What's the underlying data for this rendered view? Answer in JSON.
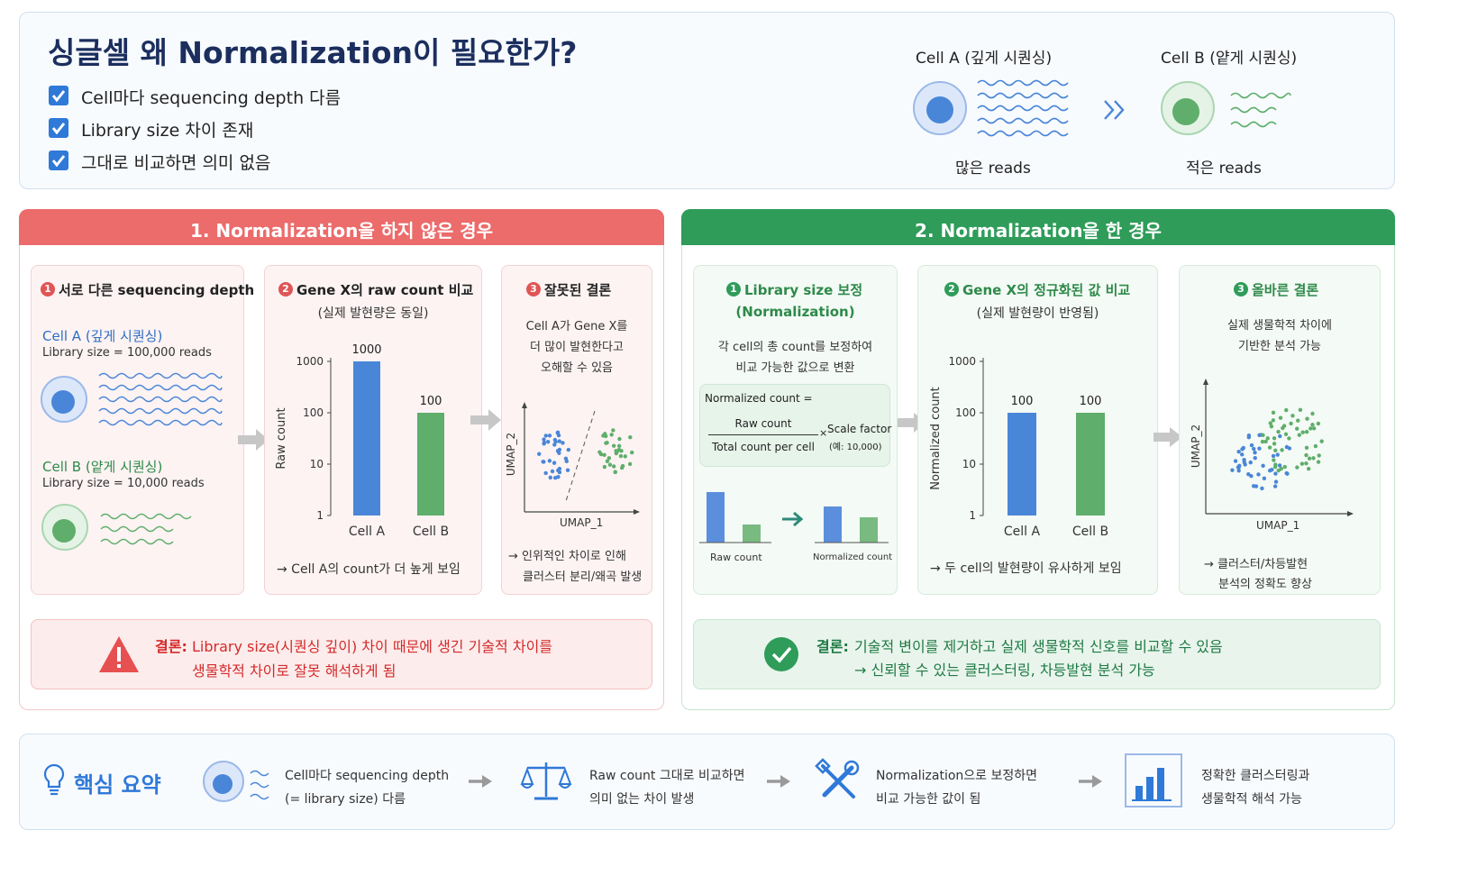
{
  "header": {
    "title": "싱글셀 왜 Normalization이 필요한가?",
    "checks": [
      "Cell마다 sequencing depth 다름",
      "Library size 차이 존재",
      "그대로 비교하면 의미 없음"
    ],
    "cell_a_title": "Cell A (깊게 시퀀싱)",
    "cell_b_title": "Cell B (얕게 시퀀싱)",
    "cell_a_reads": "많은 reads",
    "cell_b_reads": "적은 reads"
  },
  "left": {
    "banner": "1. Normalization을 하지 않은 경우",
    "card1": {
      "num": "1",
      "title": "서로 다른 sequencing depth",
      "cell_a_label": "Cell A (깊게 시퀀싱)",
      "cell_a_lib": "Library size = 100,000 reads",
      "cell_b_label": "Cell B (얕게 시퀀싱)",
      "cell_b_lib": "Library size = 10,000 reads"
    },
    "card2": {
      "num": "2",
      "title": "Gene X의 raw count 비교",
      "subtitle": "(실제 발현량은 동일)",
      "note": "→ Cell A의 count가 더 높게 보임"
    },
    "card3": {
      "num": "3",
      "title": "잘못된 결론",
      "desc": [
        "Cell A가 Gene X를",
        "더 많이 발현한다고",
        "오해할 수 있음"
      ],
      "note": [
        "→ 인위적인 차이로 인해",
        "클러스터 분리/왜곡 발생"
      ],
      "xlabel": "UMAP_1",
      "ylabel": "UMAP_2"
    },
    "conclusion_label": "결론:",
    "conclusion": [
      "Library size(시퀀싱 깊이) 차이 때문에 생긴 기술적 차이를",
      "생물학적 차이로 잘못 해석하게 됨"
    ]
  },
  "right": {
    "banner": "2. Normalization을 한 경우",
    "card1": {
      "num": "1",
      "title": "Library size 보정",
      "title2": "(Normalization)",
      "desc": [
        "각 cell의 총 count를 보정하여",
        "비교 가능한 값으로 변환"
      ],
      "formula_label": "Normalized count =",
      "numerator": "Raw count",
      "denominator": "Total count per cell",
      "times": "×",
      "scale": "Scale factor",
      "scale_note": "(예: 10,000)",
      "raw_label": "Raw count",
      "norm_label": "Normalized count"
    },
    "card2": {
      "num": "2",
      "title": "Gene X의 정규화된 값 비교",
      "subtitle": "(실제 발현량이 반영됨)",
      "note": "→ 두 cell의 발현량이 유사하게 보임"
    },
    "card3": {
      "num": "3",
      "title": "올바른 결론",
      "desc": [
        "실제 생물학적 차이에",
        "기반한 분석 가능"
      ],
      "note": [
        "→ 클러스터/차등발현",
        "분석의 정확도 향상"
      ],
      "xlabel": "UMAP_1",
      "ylabel": "UMAP_2"
    },
    "conclusion_label": "결론:",
    "conclusion": [
      "기술적 변이를 제거하고 실제 생물학적 신호를 비교할 수 있음",
      "→ 신뢰할 수 있는 클러스터링, 차등발현 분석 가능"
    ]
  },
  "summary": {
    "title": "핵심 요약",
    "steps": [
      [
        "Cell마다 sequencing depth",
        "(= library size) 다름"
      ],
      [
        "Raw count 그대로 비교하면",
        "의미 없는 차이 발생"
      ],
      [
        "Normalization으로 보정하면",
        "비교 가능한 값이 됨"
      ],
      [
        "정확한 클러스터링과",
        "생물학적 해석 가능"
      ]
    ]
  },
  "colors": {
    "blue": "#4a86d8",
    "green": "#5fae6b",
    "red_banner": "#ec6b6b",
    "green_banner": "#2f9c5a",
    "navy": "#1b2e5e"
  },
  "chart_data": [
    {
      "type": "bar",
      "ylabel": "Raw count",
      "yscale": "log",
      "ylim": [
        1,
        1000
      ],
      "yticks": [
        "1",
        "10",
        "100",
        "1000"
      ],
      "categories": [
        "Cell A",
        "Cell B"
      ],
      "values": [
        1000,
        100
      ],
      "value_labels": [
        "1000",
        "100"
      ]
    },
    {
      "type": "bar",
      "ylabel": "Normalized count",
      "yscale": "log",
      "ylim": [
        1,
        1000
      ],
      "yticks": [
        "1",
        "10",
        "100",
        "1000"
      ],
      "categories": [
        "Cell A",
        "Cell B"
      ],
      "values": [
        100,
        100
      ],
      "value_labels": [
        "100",
        "100"
      ]
    }
  ]
}
